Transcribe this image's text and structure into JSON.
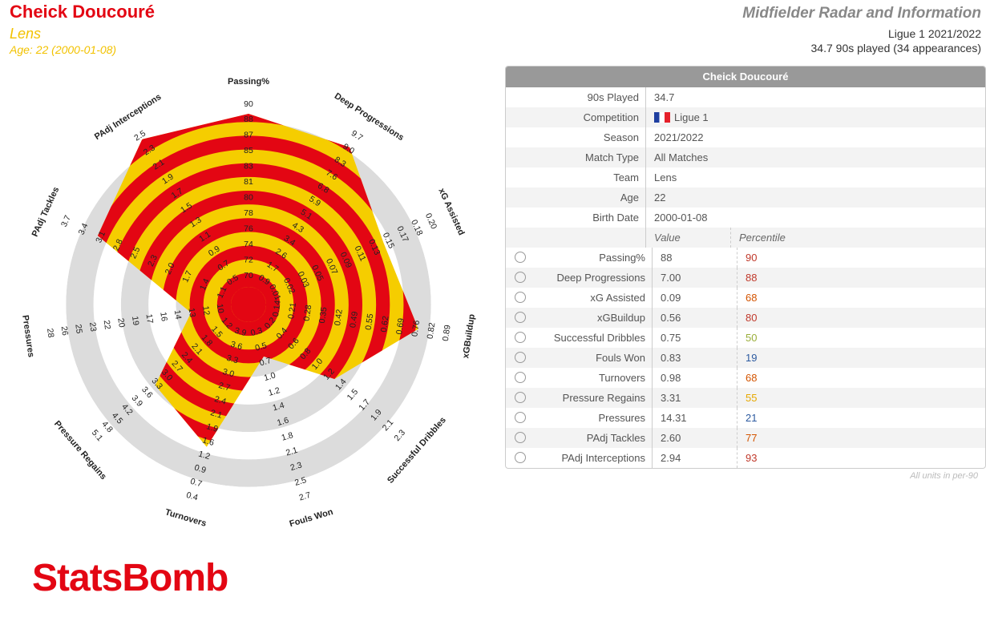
{
  "header": {
    "player_name": "Cheick Doucouré",
    "team": "Lens",
    "age": "Age: 22 (2000-01-08)",
    "radar_title": "Midfielder Radar and Information",
    "league_season": "Ligue 1 2021/2022",
    "played": "34.7 90s played (34 appearances)"
  },
  "colors": {
    "red": "#e30613",
    "yellow": "#f5cd00",
    "ring": "#dcdcdc"
  },
  "chart_data": {
    "type": "radar",
    "axes": [
      {
        "name": "Passing%",
        "ticks": [
          "70",
          "72",
          "74",
          "76",
          "78",
          "80",
          "81",
          "83",
          "85",
          "87",
          "88",
          "90"
        ],
        "value": 88
      },
      {
        "name": "Deep Progressions",
        "ticks": [
          "0.9",
          "1.7",
          "2.6",
          "3.4",
          "4.3",
          "5.1",
          "5.9",
          "6.8",
          "7.6",
          "8.3",
          "9.0",
          "9.7"
        ],
        "value": 7.0
      },
      {
        "name": "xG Assisted",
        "ticks": [
          "0.01",
          "0.02",
          "0.03",
          "0.05",
          "0.07",
          "0.09",
          "0.11",
          "0.13",
          "0.15",
          "0.17",
          "0.18",
          "0.20"
        ],
        "value": 0.09
      },
      {
        "name": "xGBuildup",
        "ticks": [
          "0.14",
          "0.21",
          "0.28",
          "0.35",
          "0.42",
          "0.49",
          "0.55",
          "0.62",
          "0.69",
          "0.76",
          "0.82",
          "0.89"
        ],
        "value": 0.56
      },
      {
        "name": "Successful Dribbles",
        "ticks": [
          "0.2",
          "0.4",
          "0.6",
          "0.8",
          "1.0",
          "1.2",
          "1.4",
          "1.5",
          "1.7",
          "1.9",
          "2.1",
          "2.3"
        ],
        "value": 0.75
      },
      {
        "name": "Fouls Won",
        "ticks": [
          "0.3",
          "0.5",
          "0.7",
          "1.0",
          "1.2",
          "1.4",
          "1.6",
          "1.8",
          "2.1",
          "2.3",
          "2.5",
          "2.7"
        ],
        "value": 0.83
      },
      {
        "name": "Turnovers",
        "ticks": [
          "3.9",
          "3.6",
          "3.3",
          "3.0",
          "2.7",
          "2.4",
          "2.1",
          "1.9",
          "1.6",
          "1.2",
          "0.9",
          "0.7",
          "0.4"
        ],
        "value": 0.98
      },
      {
        "name": "Pressure Regains",
        "ticks": [
          "1.2",
          "1.5",
          "1.8",
          "2.1",
          "2.4",
          "2.7",
          "3.0",
          "3.3",
          "3.6",
          "3.9",
          "4.2",
          "4.5",
          "4.8",
          "5.1"
        ],
        "value": 3.31
      },
      {
        "name": "Pressures",
        "ticks": [
          "10",
          "12",
          "13",
          "14",
          "16",
          "17",
          "19",
          "20",
          "22",
          "23",
          "25",
          "26",
          "28"
        ],
        "value": 14.31
      },
      {
        "name": "PAdj Tackles",
        "ticks": [
          "1.1",
          "1.4",
          "1.7",
          "2.0",
          "2.3",
          "2.5",
          "2.8",
          "3.1",
          "3.4",
          "3.7"
        ],
        "value": 2.6
      },
      {
        "name": "PAdj Interceptions",
        "ticks": [
          "0.5",
          "0.7",
          "0.9",
          "1.1",
          "1.3",
          "1.5",
          "1.7",
          "1.9",
          "2.1",
          "2.3",
          "2.5"
        ],
        "value": 2.94
      }
    ],
    "percentiles": [
      90,
      88,
      68,
      80,
      50,
      19,
      68,
      55,
      21,
      77,
      93
    ]
  },
  "info_table": {
    "title": "Cheick Doucouré",
    "rows": [
      {
        "label": "90s Played",
        "value": "34.7"
      },
      {
        "label": "Competition",
        "value": "Ligue 1"
      },
      {
        "label": "Season",
        "value": "2021/2022"
      },
      {
        "label": "Match Type",
        "value": "All Matches"
      },
      {
        "label": "Team",
        "value": "Lens"
      },
      {
        "label": "Age",
        "value": "22"
      },
      {
        "label": "Birth Date",
        "value": "2000-01-08"
      }
    ],
    "value_header": "Value",
    "percentile_header": "Percentile",
    "stats": [
      {
        "label": "Passing%",
        "value": "88",
        "percentile": "90",
        "color": "#c0392b"
      },
      {
        "label": "Deep Progressions",
        "value": "7.00",
        "percentile": "88",
        "color": "#c0392b"
      },
      {
        "label": "xG Assisted",
        "value": "0.09",
        "percentile": "68",
        "color": "#d35400"
      },
      {
        "label": "xGBuildup",
        "value": "0.56",
        "percentile": "80",
        "color": "#c0392b"
      },
      {
        "label": "Successful Dribbles",
        "value": "0.75",
        "percentile": "50",
        "color": "#9aae3a"
      },
      {
        "label": "Fouls Won",
        "value": "0.83",
        "percentile": "19",
        "color": "#2c5aa0"
      },
      {
        "label": "Turnovers",
        "value": "0.98",
        "percentile": "68",
        "color": "#d35400"
      },
      {
        "label": "Pressure Regains",
        "value": "3.31",
        "percentile": "55",
        "color": "#e6a800"
      },
      {
        "label": "Pressures",
        "value": "14.31",
        "percentile": "21",
        "color": "#2c5aa0"
      },
      {
        "label": "PAdj Tackles",
        "value": "2.60",
        "percentile": "77",
        "color": "#d35400"
      },
      {
        "label": "PAdj Interceptions",
        "value": "2.94",
        "percentile": "93",
        "color": "#c0392b"
      }
    ],
    "units_note": "All units in per-90"
  },
  "logo": "StatsBomb"
}
